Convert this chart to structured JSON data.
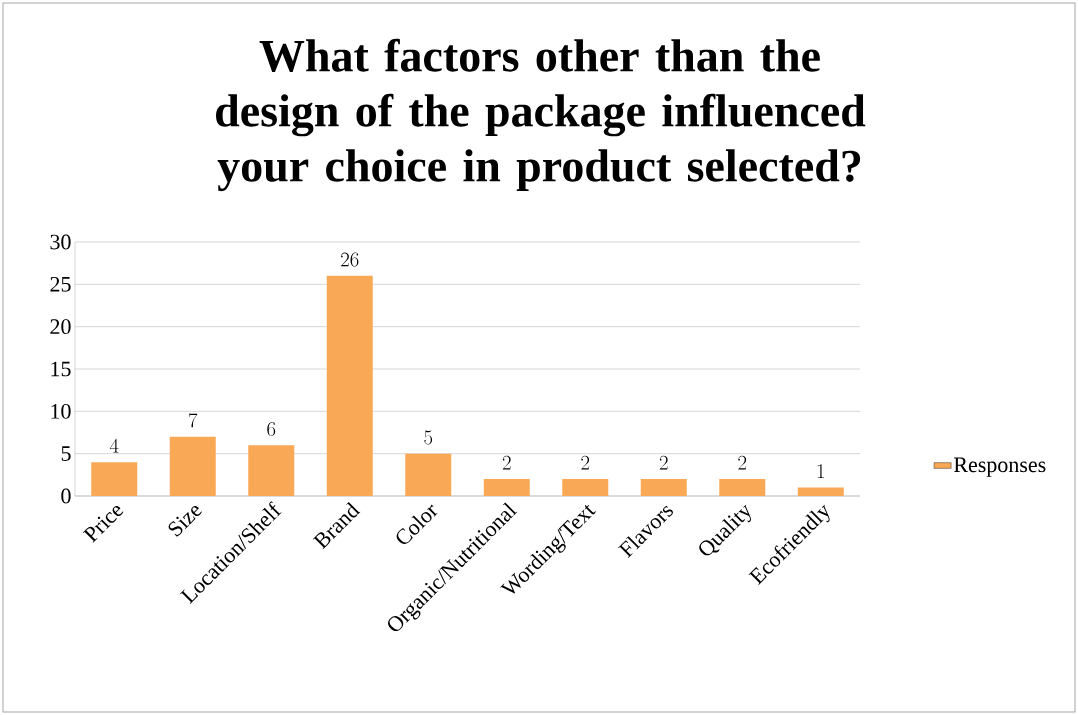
{
  "chart_data": {
    "type": "bar",
    "title": "What factors other than the design of the package influenced your choice in product selected?",
    "categories": [
      "Price",
      "Size",
      "Location/Shelf",
      "Brand",
      "Color",
      "Organic/Nutritional",
      "Wording/Text",
      "Flavors",
      "Quality",
      "Ecofriendly"
    ],
    "series": [
      {
        "name": "Responses",
        "color": "#f9a855",
        "values": [
          4,
          7,
          6,
          26,
          5,
          2,
          2,
          2,
          2,
          1
        ]
      }
    ],
    "ylim": [
      0,
      30
    ],
    "yticks": [
      0,
      5,
      10,
      15,
      20,
      25,
      30
    ],
    "grid": "y",
    "legend": "right",
    "data_labels": true
  }
}
